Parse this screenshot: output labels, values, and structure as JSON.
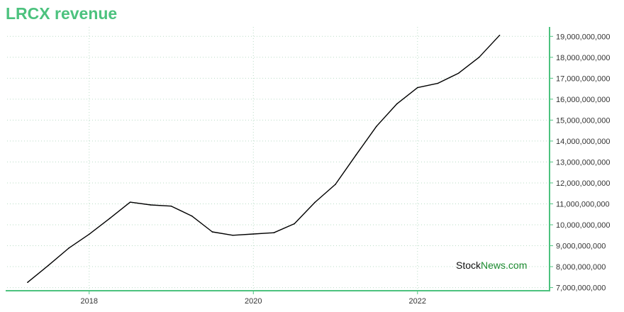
{
  "title": "LRCX revenue",
  "watermark": {
    "part1": "Stock",
    "part2": "News",
    "part3": ".com"
  },
  "colors": {
    "accent": "#4cc27e",
    "line": "#000000",
    "grid": "#b9dcc6",
    "watermark_green": "#1b8a2f"
  },
  "chart_data": {
    "type": "line",
    "title": "LRCX revenue",
    "xlabel": "",
    "ylabel": "",
    "grid": true,
    "y_axis_position": "right",
    "xlim": [
      2017.0,
      2023.6
    ],
    "ylim": [
      6850000000,
      19450000000
    ],
    "x_ticks": [
      2018,
      2020,
      2022
    ],
    "x_tick_labels": [
      "2018",
      "2020",
      "2022"
    ],
    "y_ticks": [
      7000000000,
      8000000000,
      9000000000,
      10000000000,
      11000000000,
      12000000000,
      13000000000,
      14000000000,
      15000000000,
      16000000000,
      17000000000,
      18000000000,
      19000000000
    ],
    "y_tick_labels": [
      "7,000,000,000",
      "8,000,000,000",
      "9,000,000,000",
      "10,000,000,000",
      "11,000,000,000",
      "12,000,000,000",
      "13,000,000,000",
      "14,000,000,000",
      "15,000,000,000",
      "16,000,000,000",
      "17,000,000,000",
      "18,000,000,000",
      "19,000,000,000"
    ],
    "x": [
      2017.25,
      2017.5,
      2017.75,
      2018.0,
      2018.25,
      2018.5,
      2018.75,
      2019.0,
      2019.25,
      2019.5,
      2019.75,
      2020.0,
      2020.25,
      2020.5,
      2020.75,
      2021.0,
      2021.25,
      2021.5,
      2021.75,
      2022.0,
      2022.25,
      2022.5,
      2022.75,
      2023.0
    ],
    "series": [
      {
        "values": [
          7250000000,
          8050000000,
          8880000000,
          9550000000,
          10300000000,
          11080000000,
          10950000000,
          10890000000,
          10420000000,
          9660000000,
          9500000000,
          9560000000,
          9620000000,
          10050000000,
          11070000000,
          11930000000,
          13330000000,
          14700000000,
          15780000000,
          16550000000,
          16760000000,
          17240000000,
          18000000000,
          19050000000
        ]
      }
    ]
  }
}
